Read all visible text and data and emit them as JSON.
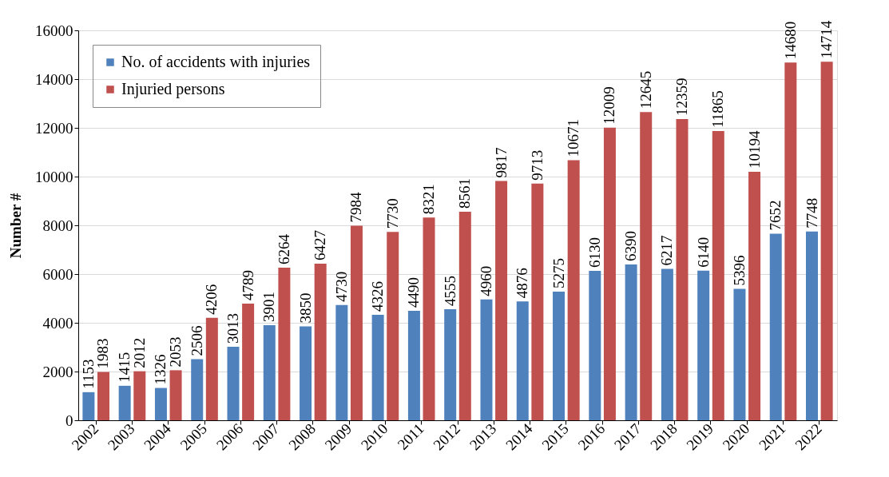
{
  "chart_data": {
    "type": "bar",
    "ylabel": "Number #",
    "categories": [
      "2002",
      "2003",
      "2004",
      "2005",
      "2006",
      "2007",
      "2008",
      "2009",
      "2010",
      "2011",
      "2012",
      "2013",
      "2014",
      "2015",
      "2016",
      "2017",
      "2018",
      "2019",
      "2020",
      "2021",
      "2022"
    ],
    "series": [
      {
        "name": "No. of accidents with injuries",
        "color": "#4f81bd",
        "values": [
          1153,
          1415,
          1326,
          2506,
          3013,
          3901,
          3850,
          4730,
          4326,
          4490,
          4555,
          4960,
          4876,
          5275,
          6130,
          6390,
          6217,
          6140,
          5396,
          7652,
          7748
        ]
      },
      {
        "name": "Injuried persons",
        "color": "#c0504d",
        "values": [
          1983,
          2012,
          2053,
          4206,
          4789,
          6264,
          6427,
          7984,
          7730,
          8321,
          8561,
          9817,
          9713,
          10671,
          12009,
          12645,
          12359,
          11865,
          10194,
          14680,
          14714
        ]
      }
    ],
    "ylim": [
      0,
      16000
    ],
    "yticks": [
      0,
      2000,
      4000,
      6000,
      8000,
      10000,
      12000,
      14000,
      16000
    ],
    "grid": "y",
    "legend": "top left",
    "data_labels": true
  }
}
